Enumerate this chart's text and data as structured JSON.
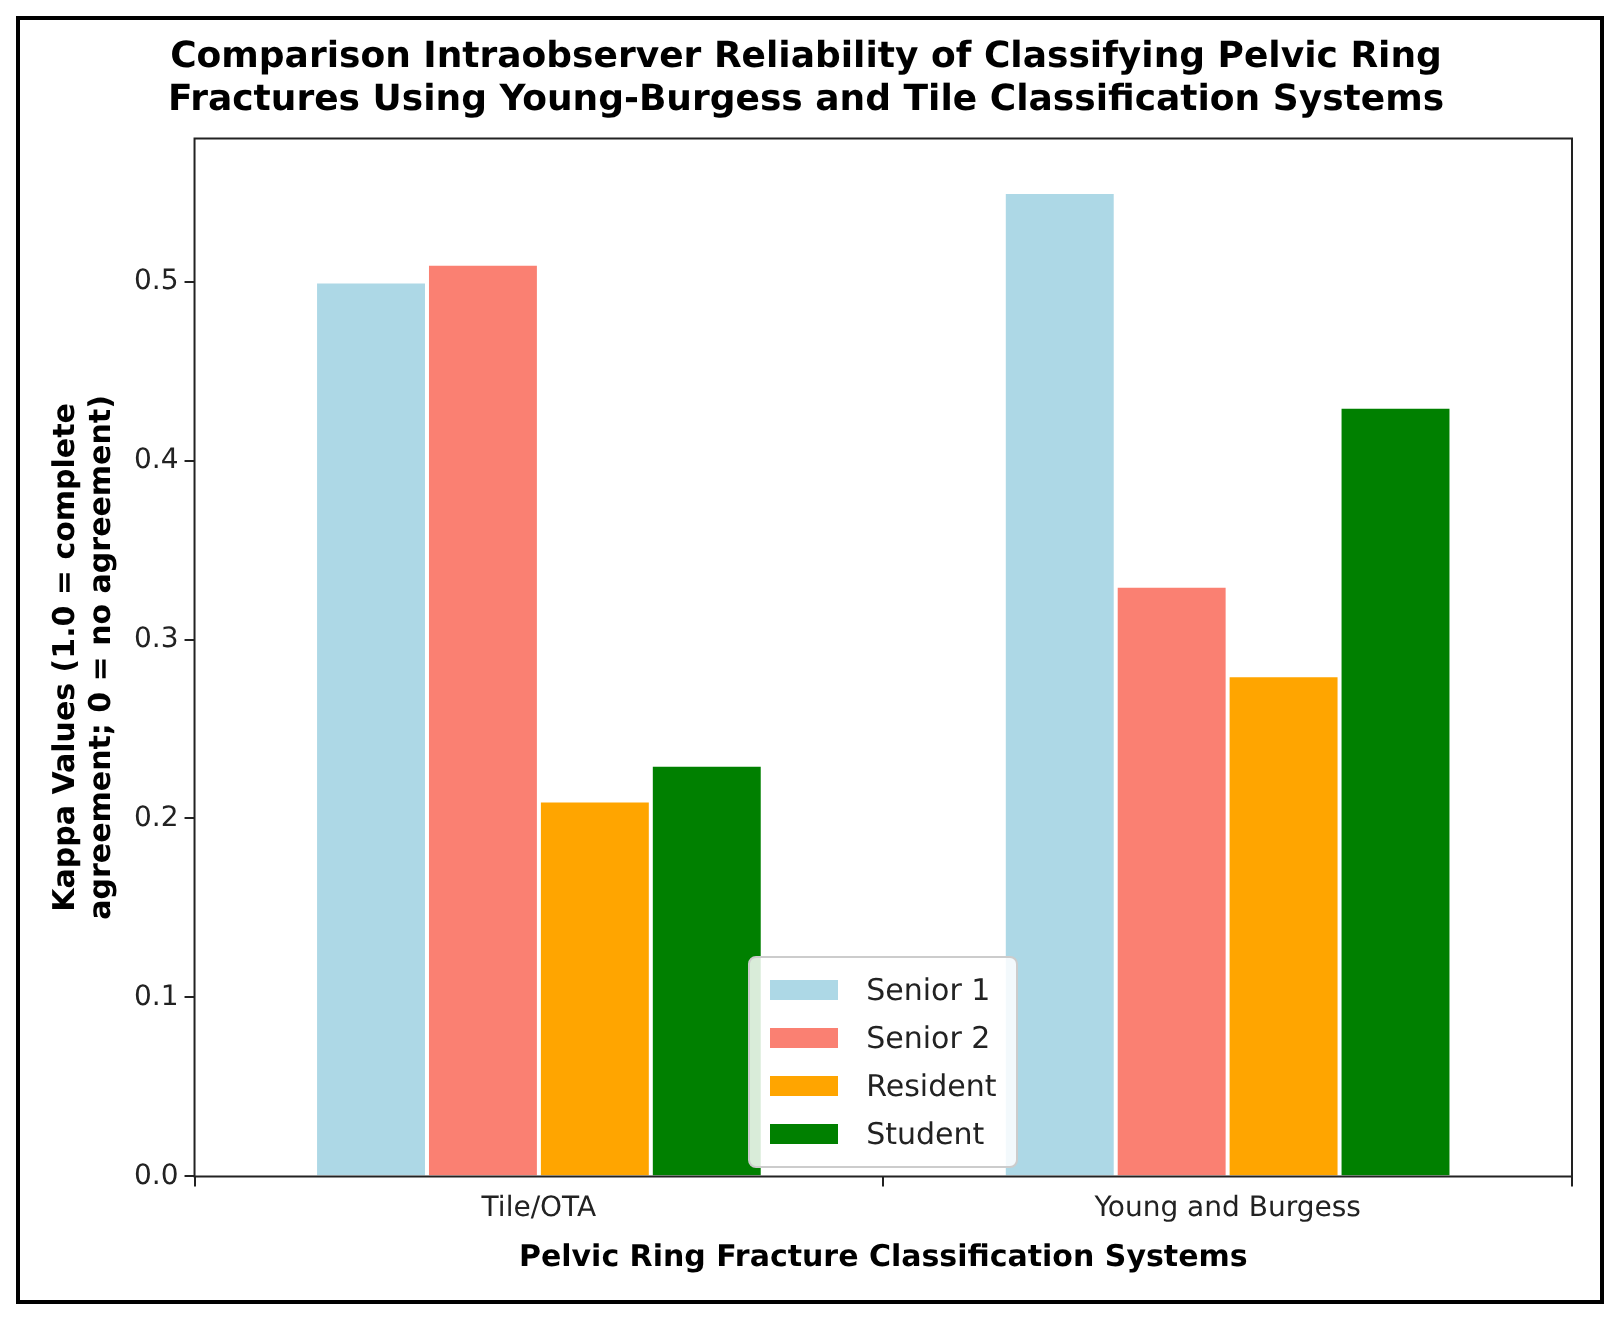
{
  "chart_data": {
    "type": "bar",
    "title": "Comparison Intraobserver Reliability of Classifying Pelvic Ring Fractures Using Young-Burgess and Tile Classification Systems",
    "xlabel": "Pelvic Ring Fracture Classification Systems",
    "ylabel": "Kappa Values (1.0 = complete agreement; 0 = no agreement)",
    "categories": [
      "Tile/OTA",
      "Young and Burgess"
    ],
    "series": [
      {
        "name": "Senior 1",
        "color": "#add8e6",
        "values": [
          0.5,
          0.55
        ]
      },
      {
        "name": "Senior 2",
        "color": "#fa8072",
        "values": [
          0.51,
          0.33
        ]
      },
      {
        "name": "Resident",
        "color": "#ffa500",
        "values": [
          0.21,
          0.28
        ]
      },
      {
        "name": "Student",
        "color": "#008000",
        "values": [
          0.23,
          0.43
        ]
      }
    ],
    "ylim": [
      0,
      0.58
    ],
    "yticks": [
      {
        "value": 0,
        "label": "0.0"
      },
      0.1,
      0.2,
      0.3,
      0.4,
      0.5
    ],
    "grid": false,
    "legend": "bottom"
  }
}
